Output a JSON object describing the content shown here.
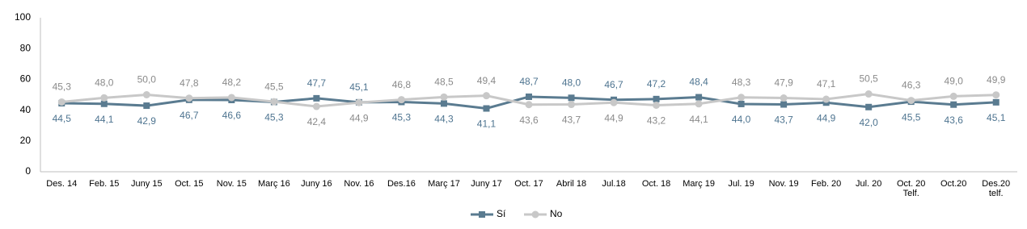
{
  "chart_data": {
    "type": "line",
    "categories": [
      "Des. 14",
      "Feb. 15",
      "Juny 15",
      "Oct. 15",
      "Nov. 15",
      "Març 16",
      "Juny 16",
      "Nov. 16",
      "Des.16",
      "Març 17",
      "Juny 17",
      "Oct. 17",
      "Abril 18",
      "Jul.18",
      "Oct. 18",
      "Març 19",
      "Jul. 19",
      "Nov. 19",
      "Feb. 20",
      "Jul. 20",
      "Oct. 20\nTelf.",
      "Oct.20",
      "Des.20\ntelf."
    ],
    "series": [
      {
        "name": "Sí",
        "color": "#5a7b90",
        "marker": "square",
        "values": [
          44.5,
          44.1,
          42.9,
          46.7,
          46.6,
          45.3,
          47.7,
          45.1,
          45.3,
          44.3,
          41.1,
          48.7,
          48.0,
          46.7,
          47.2,
          48.4,
          44.0,
          43.7,
          44.9,
          42.0,
          45.5,
          43.6,
          45.1
        ],
        "value_labels": [
          "44,5",
          "44,1",
          "42,9",
          "46,7",
          "46,6",
          "45,3",
          "47,7",
          "45,1",
          "45,3",
          "44,3",
          "41,1",
          "48,7",
          "48,0",
          "46,7",
          "47,2",
          "48,4",
          "44,0",
          "43,7",
          "44,9",
          "42,0",
          "45,5",
          "43,6",
          "45,1"
        ]
      },
      {
        "name": "No",
        "color": "#c8c8c8",
        "marker": "circle",
        "values": [
          45.3,
          48.0,
          50.0,
          47.8,
          48.2,
          45.5,
          42.4,
          44.9,
          46.8,
          48.5,
          49.4,
          43.6,
          43.7,
          44.9,
          43.2,
          44.1,
          48.3,
          47.9,
          47.1,
          50.5,
          46.3,
          49.0,
          49.9
        ],
        "value_labels": [
          "45,3",
          "48,0",
          "50,0",
          "47,8",
          "48,2",
          "45,5",
          "42,4",
          "44,9",
          "46,8",
          "48,5",
          "49,4",
          "43,6",
          "43,7",
          "44,9",
          "43,2",
          "44,1",
          "48,3",
          "47,9",
          "47,1",
          "50,5",
          "46,3",
          "49,0",
          "49,9"
        ]
      }
    ],
    "ylim": [
      0,
      100
    ],
    "yticks": [
      0,
      20,
      40,
      60,
      80,
      100
    ],
    "grid": false,
    "legend": "bottom"
  }
}
